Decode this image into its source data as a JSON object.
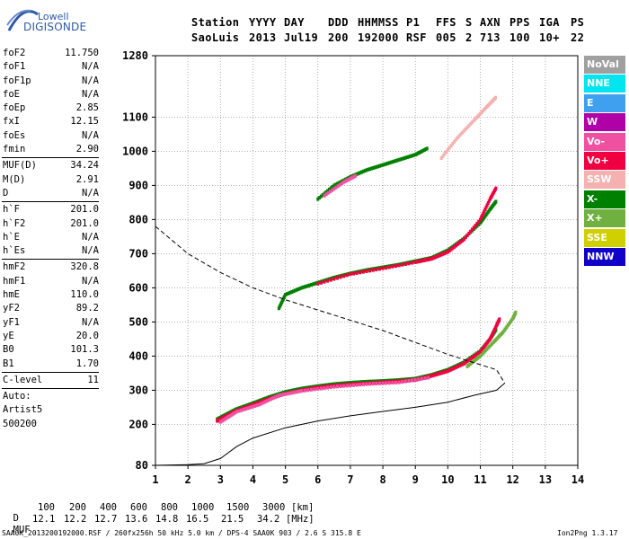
{
  "logo": {
    "line1": "Lowell",
    "line2": "DIGISONDE"
  },
  "header": {
    "labels": [
      "Station",
      "YYYY",
      "DAY",
      "DDD",
      "HHMMSS",
      "P1",
      "FFS",
      "S",
      "AXN",
      "PPS",
      "IGA",
      "PS"
    ],
    "values": [
      "SaoLuis",
      "2013",
      "Jul19",
      "200",
      "192000",
      "RSF",
      "005",
      "2",
      "713",
      "100",
      "10+",
      "22"
    ]
  },
  "params": {
    "group1": [
      {
        "label": "foF2",
        "value": "11.750"
      },
      {
        "label": "foF1",
        "value": "N/A"
      },
      {
        "label": "foF1p",
        "value": "N/A"
      },
      {
        "label": "foE",
        "value": "N/A"
      },
      {
        "label": "foEp",
        "value": "2.85"
      },
      {
        "label": "fxI",
        "value": "12.15"
      },
      {
        "label": "foEs",
        "value": "N/A"
      },
      {
        "label": "fmin",
        "value": "2.90"
      }
    ],
    "group2": [
      {
        "label": "MUF(D)",
        "value": "34.24"
      },
      {
        "label": "M(D)",
        "value": "2.91"
      },
      {
        "label": "D",
        "value": "N/A"
      }
    ],
    "group3": [
      {
        "label": "h`F",
        "value": "201.0"
      },
      {
        "label": "h`F2",
        "value": "201.0"
      },
      {
        "label": "h`E",
        "value": "N/A"
      },
      {
        "label": "h`Es",
        "value": "N/A"
      }
    ],
    "group4": [
      {
        "label": "hmF2",
        "value": "320.8"
      },
      {
        "label": "hmF1",
        "value": "N/A"
      },
      {
        "label": "hmE",
        "value": "110.0"
      },
      {
        "label": "yF2",
        "value": "89.2"
      },
      {
        "label": "yF1",
        "value": "N/A"
      },
      {
        "label": "yE",
        "value": "20.0"
      },
      {
        "label": "B0",
        "value": "101.3"
      },
      {
        "label": "B1",
        "value": "1.70"
      }
    ],
    "group5": [
      {
        "label": "C-level",
        "value": "11"
      }
    ],
    "group6": [
      "Auto:",
      "Artist5",
      "500200"
    ]
  },
  "legend": [
    {
      "label": "NoVal",
      "color": "#a0a0a0"
    },
    {
      "label": "NNE",
      "color": "#00e5f0"
    },
    {
      "label": "E",
      "color": "#3fa0f0"
    },
    {
      "label": "W",
      "color": "#b000a8"
    },
    {
      "label": "Vo-",
      "color": "#f050a0"
    },
    {
      "label": "Vo+",
      "color": "#f00040"
    },
    {
      "label": "SSW",
      "color": "#f5b0b0"
    },
    {
      "label": "X-",
      "color": "#008000"
    },
    {
      "label": "X+",
      "color": "#70b040"
    },
    {
      "label": "SSE",
      "color": "#d0d000"
    },
    {
      "label": "NNW",
      "color": "#1000c8"
    }
  ],
  "chart_data": {
    "type": "scatter",
    "title": "",
    "xlabel": "",
    "ylabel": "",
    "xlim": [
      1,
      14
    ],
    "ylim": [
      80,
      1280
    ],
    "xticks": [
      "1",
      "2",
      "3",
      "4",
      "5",
      "6",
      "7",
      "8",
      "9",
      "10",
      "11",
      "12",
      "13",
      "14"
    ],
    "yticks": [
      "80",
      "200",
      "300",
      "400",
      "500",
      "600",
      "700",
      "800",
      "900",
      "1000",
      "1100",
      "1280"
    ],
    "grid": true,
    "series": [
      {
        "name": "X-",
        "color": "#008000",
        "points": [
          [
            2.9,
            215
          ],
          [
            3.2,
            230
          ],
          [
            3.5,
            245
          ],
          [
            4.0,
            262
          ],
          [
            4.5,
            280
          ],
          [
            5.0,
            295
          ],
          [
            5.5,
            305
          ],
          [
            6.0,
            312
          ],
          [
            6.5,
            318
          ],
          [
            7.0,
            322
          ],
          [
            7.5,
            325
          ],
          [
            8.0,
            327
          ],
          [
            8.5,
            330
          ],
          [
            9.0,
            334
          ],
          [
            9.5,
            345
          ],
          [
            10.0,
            360
          ],
          [
            10.5,
            382
          ],
          [
            11.0,
            415
          ],
          [
            11.3,
            450
          ],
          [
            11.5,
            480
          ]
        ]
      },
      {
        "name": "Vo+",
        "color": "#f00040",
        "points": [
          [
            2.9,
            210
          ],
          [
            3.2,
            225
          ],
          [
            3.5,
            240
          ],
          [
            4.0,
            257
          ],
          [
            4.5,
            275
          ],
          [
            5.0,
            290
          ],
          [
            5.5,
            300
          ],
          [
            6.0,
            308
          ],
          [
            6.5,
            313
          ],
          [
            7.0,
            317
          ],
          [
            7.5,
            320
          ],
          [
            8.0,
            323
          ],
          [
            8.5,
            326
          ],
          [
            9.0,
            330
          ],
          [
            9.5,
            342
          ],
          [
            10.0,
            356
          ],
          [
            10.5,
            378
          ],
          [
            11.0,
            412
          ],
          [
            11.3,
            450
          ],
          [
            11.5,
            490
          ],
          [
            11.6,
            510
          ]
        ]
      },
      {
        "name": "Vo-",
        "color": "#f050a0",
        "points": [
          [
            3.0,
            207
          ],
          [
            3.5,
            237
          ],
          [
            4.2,
            258
          ],
          [
            4.8,
            285
          ],
          [
            5.5,
            298
          ],
          [
            6.5,
            310
          ],
          [
            7.5,
            318
          ],
          [
            8.5,
            323
          ],
          [
            9.5,
            338
          ]
        ]
      },
      {
        "name": "X+",
        "color": "#70b040",
        "points": [
          [
            10.6,
            370
          ],
          [
            11.0,
            400
          ],
          [
            11.4,
            440
          ],
          [
            11.7,
            470
          ],
          [
            12.0,
            510
          ],
          [
            12.1,
            530
          ]
        ]
      },
      {
        "name": "X- (2nd)",
        "color": "#008000",
        "points": [
          [
            4.8,
            540
          ],
          [
            5.0,
            580
          ],
          [
            5.5,
            600
          ],
          [
            6.0,
            615
          ],
          [
            6.5,
            630
          ],
          [
            7.0,
            642
          ],
          [
            7.5,
            652
          ],
          [
            8.0,
            660
          ],
          [
            8.5,
            668
          ],
          [
            9.0,
            678
          ],
          [
            9.5,
            688
          ],
          [
            10.0,
            710
          ],
          [
            10.5,
            745
          ],
          [
            11.0,
            790
          ],
          [
            11.3,
            830
          ],
          [
            11.5,
            855
          ]
        ]
      },
      {
        "name": "Vo+ (2nd)",
        "color": "#f00040",
        "points": [
          [
            6.0,
            612
          ],
          [
            7.0,
            640
          ],
          [
            8.0,
            657
          ],
          [
            9.0,
            675
          ],
          [
            9.5,
            685
          ],
          [
            10.0,
            705
          ],
          [
            10.5,
            742
          ],
          [
            11.0,
            800
          ],
          [
            11.3,
            860
          ],
          [
            11.5,
            895
          ]
        ]
      },
      {
        "name": "X- (3rd)",
        "color": "#008000",
        "points": [
          [
            6.0,
            860
          ],
          [
            6.5,
            900
          ],
          [
            7.0,
            925
          ],
          [
            7.5,
            945
          ],
          [
            8.0,
            960
          ],
          [
            8.5,
            975
          ],
          [
            9.0,
            990
          ],
          [
            9.4,
            1010
          ]
        ]
      },
      {
        "name": "Vo- (3rd)",
        "color": "#f050a0",
        "points": [
          [
            6.2,
            870
          ],
          [
            6.8,
            910
          ],
          [
            7.2,
            930
          ]
        ]
      },
      {
        "name": "SSW",
        "color": "#f5b0b0",
        "points": [
          [
            9.8,
            980
          ],
          [
            10.3,
            1040
          ],
          [
            10.8,
            1090
          ],
          [
            11.2,
            1130
          ],
          [
            11.5,
            1160
          ]
        ]
      }
    ],
    "profile": [
      [
        1.0,
        80
      ],
      [
        2.0,
        82
      ],
      [
        2.5,
        85
      ],
      [
        3.0,
        100
      ],
      [
        3.5,
        135
      ],
      [
        4.0,
        160
      ],
      [
        5.0,
        190
      ],
      [
        6.0,
        210
      ],
      [
        7.0,
        225
      ],
      [
        8.0,
        238
      ],
      [
        9.0,
        250
      ],
      [
        10.0,
        265
      ],
      [
        10.8,
        285
      ],
      [
        11.5,
        300
      ],
      [
        11.75,
        320.8
      ]
    ],
    "muf_curve": [
      [
        1.0,
        780
      ],
      [
        1.5,
        740
      ],
      [
        2.0,
        700
      ],
      [
        3.0,
        645
      ],
      [
        4.0,
        600
      ],
      [
        5.0,
        565
      ],
      [
        6.0,
        535
      ],
      [
        7.0,
        505
      ],
      [
        8.0,
        475
      ],
      [
        9.0,
        440
      ],
      [
        10.0,
        405
      ],
      [
        11.0,
        375
      ],
      [
        11.5,
        360
      ],
      [
        11.75,
        320.8
      ]
    ]
  },
  "footer": {
    "d_label": "D",
    "d_values": [
      "100",
      "200",
      "400",
      "600",
      "800",
      "1000",
      "1500",
      "3000"
    ],
    "d_unit": "[km]",
    "muf_label": "MUF",
    "muf_values": [
      "12.1",
      "12.2",
      "12.7",
      "13.6",
      "14.8",
      "16.5",
      "21.5",
      "34.2"
    ],
    "muf_unit": "[MHz]",
    "file_info": "SAA0K_2013200192000.RSF / 260fx256h 50 kHz 5.0 km / DPS-4 SAA0K 903 / 2.6 S 315.8 E",
    "version": "Ion2Png 1.3.17"
  }
}
